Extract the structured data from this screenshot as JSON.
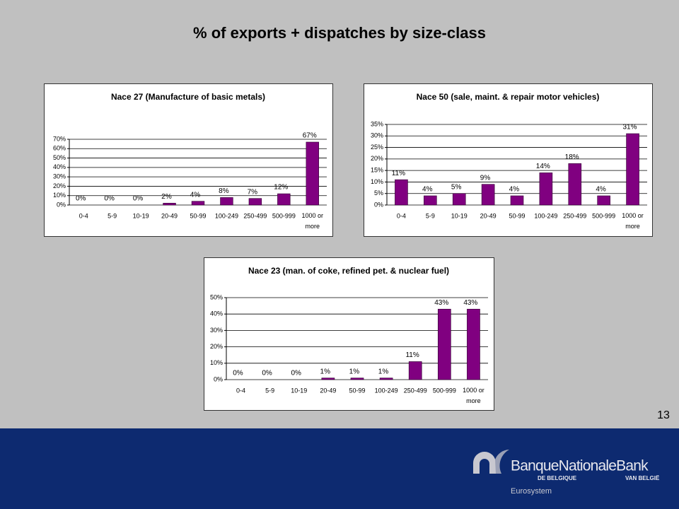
{
  "title": "% of exports + dispatches by size-class",
  "page_number": "13",
  "footer": {
    "brand": "BanqueNationaleBank",
    "sub_left": "DE BELGIQUE",
    "sub_right": "VAN BELGIË",
    "network": "Eurosystem"
  },
  "chart_data": [
    {
      "type": "bar",
      "title": "Nace 27 (Manufacture of basic metals)",
      "categories": [
        "0-4",
        "5-9",
        "10-19",
        "20-49",
        "50-99",
        "100-249",
        "250-499",
        "500-999",
        "1000 or more"
      ],
      "values": [
        0,
        0,
        0,
        2,
        4,
        8,
        7,
        12,
        67
      ],
      "value_labels": [
        "0%",
        "0%",
        "0%",
        "2%",
        "4%",
        "8%",
        "7%",
        "12%",
        "67%"
      ],
      "color": "#800080",
      "grid": true,
      "ylim": [
        0,
        70
      ],
      "yticks": [
        {
          "value": 0,
          "label": "0%"
        },
        {
          "value": 10,
          "label": "10%"
        },
        {
          "value": 20,
          "label": "20%"
        },
        {
          "value": 30,
          "label": "30%"
        },
        {
          "value": 40,
          "label": "40%"
        },
        {
          "value": 50,
          "label": "50%"
        },
        {
          "value": 60,
          "label": "60%"
        },
        {
          "value": 70,
          "label": "70%"
        }
      ]
    },
    {
      "type": "bar",
      "title": "Nace 50 (sale, maint. & repair motor vehicles)",
      "categories": [
        "0-4",
        "5-9",
        "10-19",
        "20-49",
        "50-99",
        "100-249",
        "250-499",
        "500-999",
        "1000 or more"
      ],
      "values": [
        11,
        4,
        5,
        9,
        4,
        14,
        18,
        4,
        31
      ],
      "value_labels": [
        "11%",
        "4%",
        "5%",
        "9%",
        "4%",
        "14%",
        "18%",
        "4%",
        "31%"
      ],
      "color": "#800080",
      "grid": true,
      "ylim": [
        0,
        35
      ],
      "yticks": [
        {
          "value": 0,
          "label": "0%"
        },
        {
          "value": 5,
          "label": "5%"
        },
        {
          "value": 10,
          "label": "10%"
        },
        {
          "value": 15,
          "label": "15%"
        },
        {
          "value": 20,
          "label": "20%"
        },
        {
          "value": 25,
          "label": "25%"
        },
        {
          "value": 30,
          "label": "30%"
        },
        {
          "value": 35,
          "label": "35%"
        }
      ]
    },
    {
      "type": "bar",
      "title": "Nace 23 (man. of coke, refined pet. & nuclear fuel)",
      "categories": [
        "0-4",
        "5-9",
        "10-19",
        "20-49",
        "50-99",
        "100-249",
        "250-499",
        "500-999",
        "1000 or more"
      ],
      "values": [
        0,
        0,
        0,
        1,
        1,
        1,
        11,
        43,
        43
      ],
      "value_labels": [
        "0%",
        "0%",
        "0%",
        "1%",
        "1%",
        "1%",
        "11%",
        "43%",
        "43%"
      ],
      "color": "#800080",
      "grid": true,
      "ylim": [
        0,
        50
      ],
      "yticks": [
        {
          "value": 0,
          "label": "0%"
        },
        {
          "value": 10,
          "label": "10%"
        },
        {
          "value": 20,
          "label": "20%"
        },
        {
          "value": 30,
          "label": "30%"
        },
        {
          "value": 40,
          "label": "40%"
        },
        {
          "value": 50,
          "label": "50%"
        }
      ]
    }
  ]
}
